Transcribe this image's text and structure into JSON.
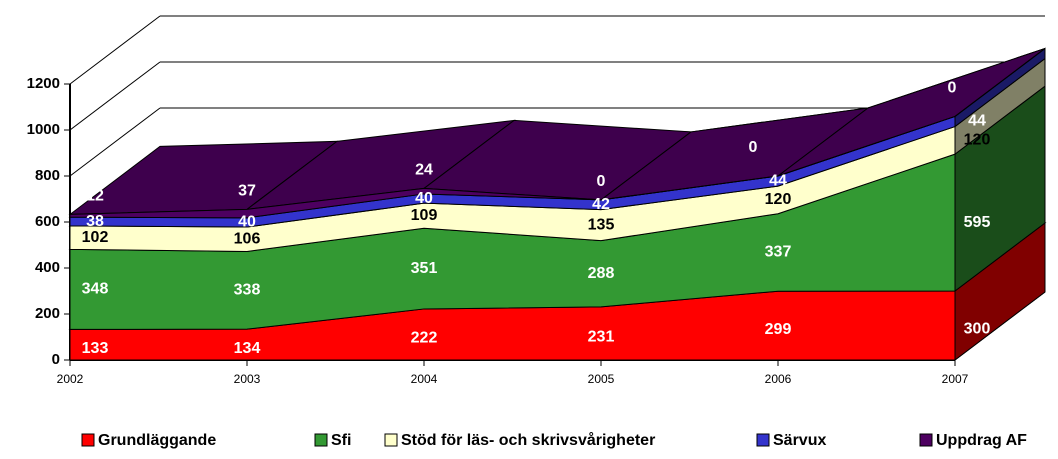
{
  "chart_data": {
    "type": "area3d",
    "categories": [
      "2002",
      "2003",
      "2004",
      "2005",
      "2006",
      "2007"
    ],
    "stacked": true,
    "series": [
      {
        "name": "Grundläggande",
        "color": "#ff0000",
        "values": [
          133,
          134,
          222,
          231,
          299,
          300
        ]
      },
      {
        "name": "Sfi",
        "color": "#339933",
        "values": [
          348,
          338,
          351,
          288,
          337,
          595
        ]
      },
      {
        "name": "Stöd för läs- och skrivsvårigheter",
        "color": "#ffffcc",
        "values": [
          102,
          106,
          109,
          135,
          120,
          120
        ]
      },
      {
        "name": "Särvux",
        "color": "#3333cc",
        "values": [
          38,
          40,
          40,
          42,
          44,
          44
        ]
      },
      {
        "name": "Uppdrag AF",
        "color": "#4d0060",
        "values": [
          12,
          37,
          24,
          0,
          0,
          0
        ]
      }
    ],
    "ylim": [
      0,
      1200
    ],
    "yticks": [
      0,
      200,
      400,
      600,
      800,
      1000,
      1200
    ],
    "grid": true,
    "legend": "bottom"
  }
}
